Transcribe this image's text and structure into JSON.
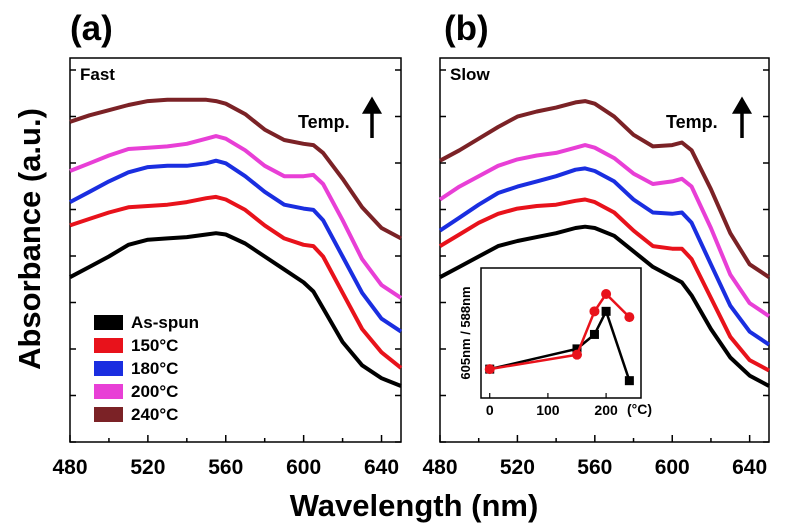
{
  "figure": {
    "ylabel": "Absorbance (a.u.)",
    "xlabel": "Wavelength (nm)",
    "legend": [
      "As-spun",
      "150°C",
      "180°C",
      "200°C",
      "240°C"
    ]
  },
  "chart_data": [
    {
      "type": "line",
      "panel_label": "(a)",
      "condition": "Fast",
      "annotation": "Temp.",
      "xlabel": "Wavelength (nm)",
      "ylabel": "Absorbance (a.u.)",
      "xlim": [
        480,
        650
      ],
      "xticks": [
        480,
        520,
        560,
        600,
        640
      ],
      "y_tick_labels_shown": false,
      "legend_position": "bottom-left",
      "x": [
        480,
        490,
        500,
        510,
        520,
        530,
        540,
        550,
        555,
        560,
        570,
        580,
        590,
        600,
        605,
        610,
        620,
        630,
        640,
        650
      ],
      "series": [
        {
          "name": "As-spun",
          "color": "#000000",
          "values": [
            0.42,
            0.46,
            0.5,
            0.545,
            0.565,
            0.57,
            0.575,
            0.585,
            0.59,
            0.585,
            0.55,
            0.5,
            0.45,
            0.4,
            0.365,
            0.3,
            0.17,
            0.08,
            0.03,
            0.0
          ]
        },
        {
          "name": "150°C",
          "color": "#e8121b",
          "values": [
            0.62,
            0.645,
            0.67,
            0.69,
            0.695,
            0.7,
            0.71,
            0.725,
            0.73,
            0.72,
            0.68,
            0.62,
            0.57,
            0.545,
            0.54,
            0.5,
            0.36,
            0.22,
            0.13,
            0.07
          ]
        },
        {
          "name": "180°C",
          "color": "#1a2ee0",
          "values": [
            0.71,
            0.75,
            0.79,
            0.825,
            0.845,
            0.85,
            0.85,
            0.86,
            0.87,
            0.86,
            0.81,
            0.75,
            0.7,
            0.685,
            0.68,
            0.64,
            0.5,
            0.36,
            0.26,
            0.21
          ]
        },
        {
          "name": "200°C",
          "color": "#e83fd6",
          "values": [
            0.83,
            0.86,
            0.89,
            0.915,
            0.92,
            0.925,
            0.935,
            0.955,
            0.965,
            0.955,
            0.91,
            0.85,
            0.81,
            0.81,
            0.815,
            0.78,
            0.64,
            0.49,
            0.39,
            0.34
          ]
        },
        {
          "name": "240°C",
          "color": "#7b2226",
          "values": [
            1.02,
            1.045,
            1.065,
            1.085,
            1.1,
            1.105,
            1.105,
            1.105,
            1.1,
            1.09,
            1.05,
            0.99,
            0.95,
            0.935,
            0.93,
            0.9,
            0.8,
            0.69,
            0.61,
            0.57
          ]
        }
      ]
    },
    {
      "type": "line",
      "panel_label": "(b)",
      "condition": "Slow",
      "annotation": "Temp.",
      "xlabel": "Wavelength (nm)",
      "ylabel": "Absorbance (a.u.)",
      "xlim": [
        480,
        650
      ],
      "xticks": [
        480,
        520,
        560,
        600,
        640
      ],
      "y_tick_labels_shown": false,
      "x": [
        480,
        490,
        500,
        510,
        520,
        530,
        540,
        550,
        555,
        560,
        570,
        580,
        590,
        600,
        605,
        610,
        620,
        630,
        640,
        650
      ],
      "series": [
        {
          "name": "As-spun",
          "color": "#000000",
          "values": [
            0.42,
            0.46,
            0.5,
            0.54,
            0.56,
            0.575,
            0.59,
            0.61,
            0.615,
            0.61,
            0.58,
            0.52,
            0.46,
            0.42,
            0.4,
            0.35,
            0.22,
            0.11,
            0.04,
            0.0
          ]
        },
        {
          "name": "150°C",
          "color": "#e8121b",
          "values": [
            0.54,
            0.585,
            0.63,
            0.665,
            0.685,
            0.695,
            0.7,
            0.715,
            0.72,
            0.71,
            0.67,
            0.6,
            0.54,
            0.53,
            0.53,
            0.49,
            0.34,
            0.19,
            0.1,
            0.06
          ]
        },
        {
          "name": "180°C",
          "color": "#1a2ee0",
          "values": [
            0.6,
            0.65,
            0.7,
            0.745,
            0.77,
            0.79,
            0.81,
            0.835,
            0.84,
            0.83,
            0.79,
            0.72,
            0.67,
            0.665,
            0.67,
            0.63,
            0.47,
            0.31,
            0.21,
            0.16
          ]
        },
        {
          "name": "200°C",
          "color": "#e83fd6",
          "values": [
            0.72,
            0.77,
            0.81,
            0.85,
            0.875,
            0.89,
            0.9,
            0.92,
            0.93,
            0.92,
            0.88,
            0.82,
            0.78,
            0.79,
            0.8,
            0.77,
            0.61,
            0.43,
            0.32,
            0.27
          ]
        },
        {
          "name": "240°C",
          "color": "#7b2226",
          "values": [
            0.87,
            0.91,
            0.955,
            1.0,
            1.04,
            1.06,
            1.075,
            1.095,
            1.1,
            1.09,
            1.04,
            0.97,
            0.925,
            0.93,
            0.94,
            0.91,
            0.76,
            0.59,
            0.47,
            0.42
          ]
        }
      ]
    },
    {
      "type": "scatter",
      "role": "inset",
      "ylabel": "605nm / 588nm",
      "xlabel": "(°C)",
      "xlim": [
        -15,
        260
      ],
      "xticks": [
        0,
        100,
        200
      ],
      "ylim": [
        0.8,
        1.25
      ],
      "series": [
        {
          "name": "Fast",
          "color": "#000000",
          "marker": "square",
          "x": [
            0,
            150,
            180,
            200,
            240
          ],
          "values": [
            0.9,
            0.97,
            1.02,
            1.1,
            0.86
          ]
        },
        {
          "name": "Slow",
          "color": "#e8121b",
          "marker": "circle",
          "x": [
            0,
            150,
            180,
            200,
            240
          ],
          "values": [
            0.9,
            0.95,
            1.1,
            1.16,
            1.08
          ]
        }
      ]
    }
  ]
}
